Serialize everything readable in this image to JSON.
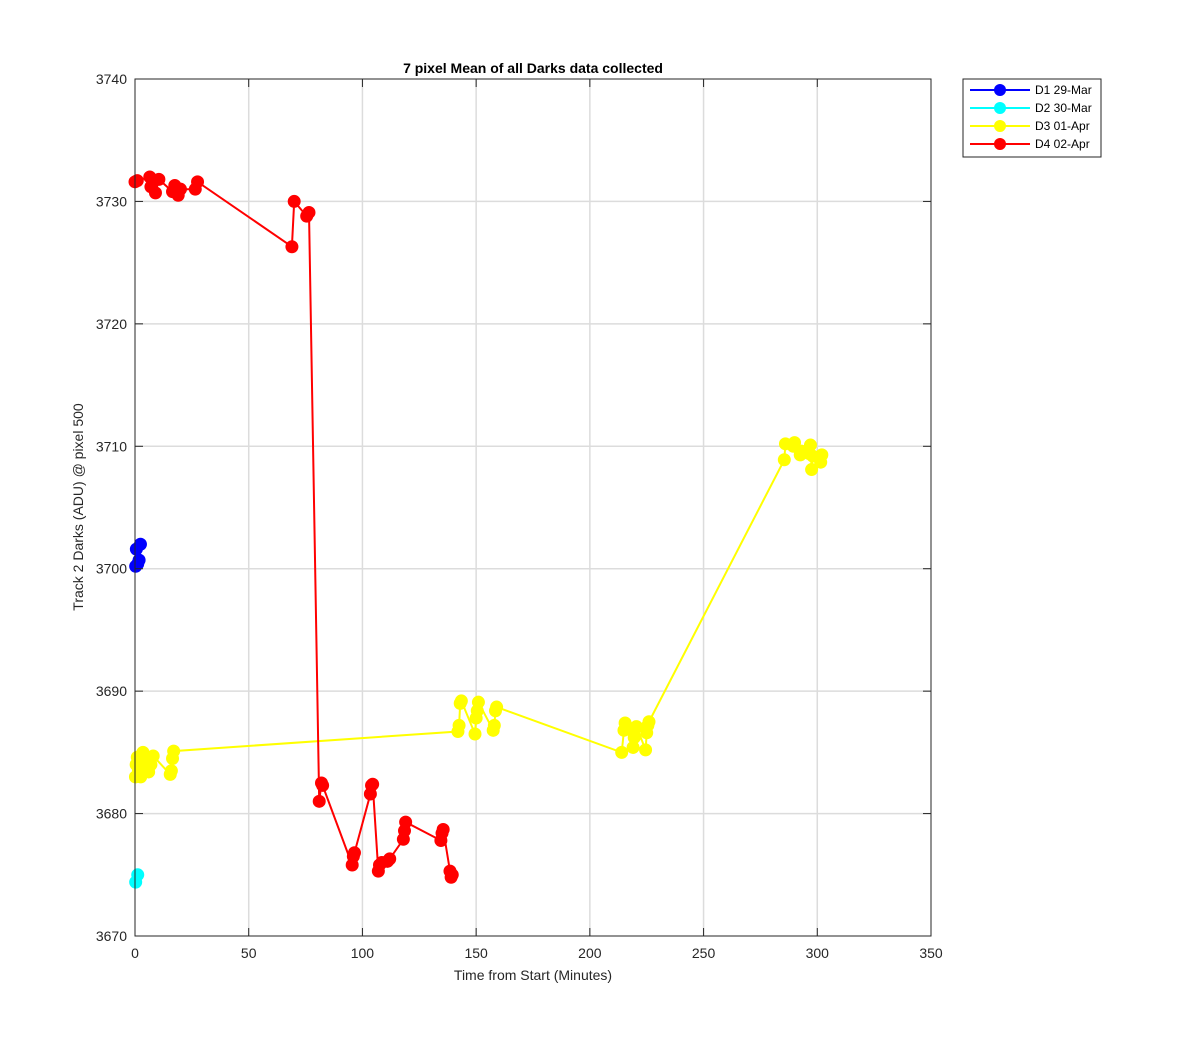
{
  "chart_data": {
    "type": "line",
    "title": "7 pixel Mean of all Darks data collected",
    "xlabel": "Time from Start (Minutes)",
    "ylabel": "Track 2 Darks (ADU) @ pixel 500",
    "xlim": [
      0,
      350
    ],
    "ylim": [
      3670,
      3740
    ],
    "xticks": [
      0,
      50,
      100,
      150,
      200,
      250,
      300,
      350
    ],
    "yticks": [
      3670,
      3680,
      3690,
      3700,
      3710,
      3720,
      3730,
      3740
    ],
    "grid": true,
    "legend_position": "outside-top-right",
    "series": [
      {
        "name": "D1 29-Mar",
        "color": "#0000ff",
        "x": [
          0.3,
          0.6,
          1.2,
          1.8,
          2.4
        ],
        "y": [
          3700.2,
          3701.6,
          3700.4,
          3700.7,
          3702.0
        ]
      },
      {
        "name": "D2 30-Mar",
        "color": "#00ffff",
        "x": [
          0.3,
          1.2
        ],
        "y": [
          3674.4,
          3675.0
        ]
      },
      {
        "name": "D3 01-Apr",
        "color": "#ffff00",
        "x": [
          0.2,
          0.5,
          1.0,
          1.5,
          2.0,
          2.5,
          3.0,
          3.5,
          4.0,
          5.0,
          6.0,
          7.0,
          8.0,
          15.5,
          16.0,
          16.5,
          17.0,
          142.0,
          142.5,
          143.0,
          143.5,
          149.5,
          150.0,
          150.5,
          151.0,
          157.5,
          158.0,
          158.5,
          159.0,
          214.0,
          215.0,
          215.5,
          216.0,
          219.0,
          219.5,
          220.0,
          220.5,
          224.5,
          225.0,
          225.5,
          226.0,
          285.5,
          286.0,
          289.5,
          290.0,
          292.5,
          293.0,
          296.5,
          297.0,
          297.5,
          298.0,
          301.5,
          302.0
        ],
        "y": [
          3683.0,
          3684.0,
          3684.6,
          3683.5,
          3684.2,
          3683.0,
          3684.8,
          3685.0,
          3683.8,
          3684.3,
          3683.4,
          3684.0,
          3684.7,
          3683.2,
          3683.5,
          3684.5,
          3685.1,
          3686.7,
          3687.2,
          3689.0,
          3689.2,
          3686.5,
          3687.8,
          3688.4,
          3689.1,
          3686.8,
          3687.2,
          3688.4,
          3688.7,
          3685.0,
          3686.8,
          3687.4,
          3687.0,
          3685.4,
          3686.2,
          3687.0,
          3687.1,
          3685.2,
          3686.6,
          3687.2,
          3687.5,
          3708.9,
          3710.2,
          3710.0,
          3710.3,
          3709.3,
          3709.6,
          3709.4,
          3710.1,
          3708.1,
          3709.2,
          3708.7,
          3709.3
        ],
        "labels": []
      },
      {
        "name": "D4 02-Apr",
        "color": "#ff0000",
        "x": [
          0.0,
          1.0,
          6.5,
          7.0,
          9.0,
          10.5,
          16.5,
          17.5,
          19.0,
          20.0,
          26.5,
          27.5,
          69.0,
          70.0,
          75.5,
          76.5,
          81.0,
          82.0,
          82.5,
          95.5,
          96.0,
          96.5,
          103.5,
          104.0,
          104.5,
          107.0,
          107.5,
          108.5,
          111.0,
          112.0,
          118.0,
          118.5,
          119.0,
          134.5,
          135.0,
          135.5,
          138.5,
          139.0,
          139.5
        ],
        "y": [
          3731.6,
          3731.7,
          3732.0,
          3731.2,
          3730.7,
          3731.8,
          3730.8,
          3731.3,
          3730.5,
          3731.0,
          3731.0,
          3731.6,
          3726.3,
          3730.0,
          3728.8,
          3729.1,
          3681.0,
          3682.5,
          3682.3,
          3675.8,
          3676.5,
          3676.8,
          3681.6,
          3682.3,
          3682.4,
          3675.3,
          3675.8,
          3676.0,
          3676.1,
          3676.3,
          3677.9,
          3678.6,
          3679.3,
          3677.8,
          3678.4,
          3678.7,
          3675.3,
          3674.8,
          3675.0
        ]
      }
    ]
  }
}
